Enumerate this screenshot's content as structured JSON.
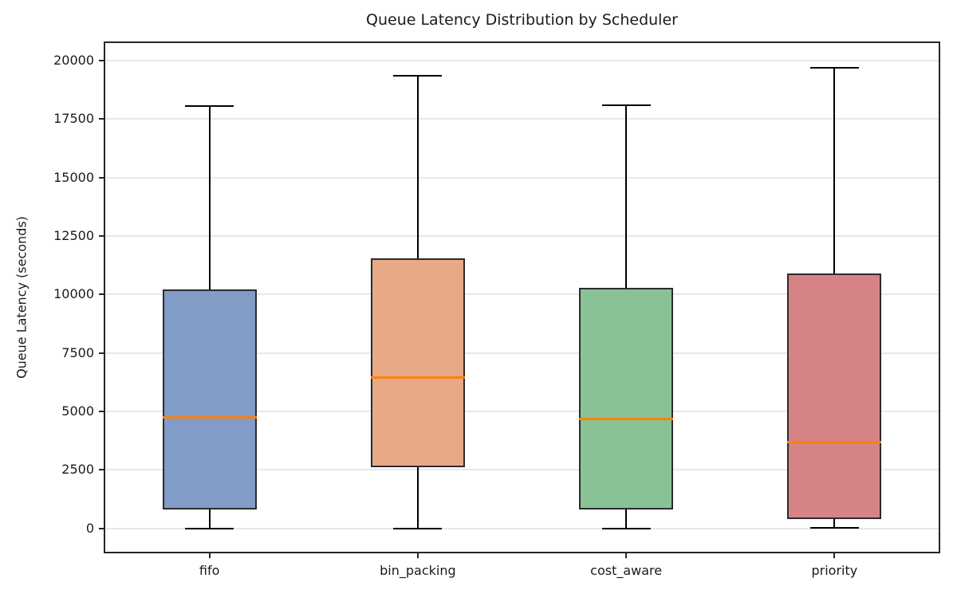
{
  "chart_data": {
    "type": "box",
    "title": "Queue Latency Distribution by Scheduler",
    "ylabel": "Queue Latency (seconds)",
    "xlabel": "",
    "categories": [
      "fifo",
      "bin_packing",
      "cost_aware",
      "priority"
    ],
    "series": [
      {
        "name": "fifo",
        "whislo": 0,
        "q1": 810,
        "med": 4730,
        "q3": 10200,
        "whishi": 18070,
        "fill": "#829CC8"
      },
      {
        "name": "bin_packing",
        "whislo": 0,
        "q1": 2620,
        "med": 6440,
        "q3": 11560,
        "whishi": 19360,
        "fill": "#E7A986"
      },
      {
        "name": "cost_aware",
        "whislo": 0,
        "q1": 810,
        "med": 4670,
        "q3": 10270,
        "whishi": 18090,
        "fill": "#88C295"
      },
      {
        "name": "priority",
        "whislo": 30,
        "q1": 390,
        "med": 3700,
        "q3": 10900,
        "whishi": 19700,
        "fill": "#D68386"
      }
    ],
    "yticks": [
      0,
      2500,
      5000,
      7500,
      10000,
      12500,
      15000,
      17500,
      20000
    ],
    "ylim": [
      -1000,
      20750
    ],
    "grid": "horizontal",
    "legend": "none",
    "colors": {
      "median": "#FF7F0E",
      "box_edge": "#2B2B30",
      "whisker": "#000000",
      "gridline": "#E8E8E8",
      "spine": "#262626",
      "text": "#1A1A1A"
    }
  }
}
